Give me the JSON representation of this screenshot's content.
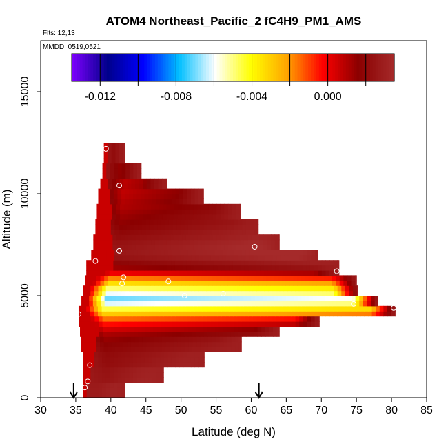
{
  "chart_data": {
    "type": "heatmap",
    "title": "ATOM4 Northeast_Pacific_2 fC4H9_PM1_AMS",
    "subtitle_flights": "Flts: 12,13",
    "subtitle_dates": "MMDD: 0519,0521",
    "xlabel": "Latitude (deg N)",
    "ylabel": "Altitude (m)",
    "xlim": [
      30,
      85
    ],
    "ylim": [
      0,
      17500
    ],
    "x_ticks": [
      30,
      35,
      40,
      45,
      50,
      55,
      60,
      65,
      70,
      75,
      80,
      85
    ],
    "y_ticks": [
      0,
      5000,
      10000,
      15000
    ],
    "colorbar": {
      "range": [
        -0.0135,
        0.0035
      ],
      "tick_values": [
        -0.012,
        -0.008,
        -0.004,
        0.0
      ],
      "tick_labels": [
        "-0.012",
        "-0.008",
        "-0.004",
        "0.000"
      ],
      "colors": [
        "#7f00ff",
        "#00008b",
        "#0000ff",
        "#00bfff",
        "#ffffff",
        "#ffff00",
        "#ffa500",
        "#ff0000",
        "#8b0000",
        "#a52a2a"
      ]
    },
    "sample_points": [
      {
        "lat": 39.3,
        "alt": 12200
      },
      {
        "lat": 41.2,
        "alt": 10400
      },
      {
        "lat": 41.2,
        "alt": 7200
      },
      {
        "lat": 37.8,
        "alt": 6700
      },
      {
        "lat": 41.8,
        "alt": 5900
      },
      {
        "lat": 41.6,
        "alt": 5600
      },
      {
        "lat": 48.2,
        "alt": 5700
      },
      {
        "lat": 50.5,
        "alt": 5000
      },
      {
        "lat": 56.0,
        "alt": 5100
      },
      {
        "lat": 60.5,
        "alt": 7400
      },
      {
        "lat": 72.2,
        "alt": 6200
      },
      {
        "lat": 74.6,
        "alt": 4600
      },
      {
        "lat": 78.0,
        "alt": 5200
      },
      {
        "lat": 80.3,
        "alt": 4400
      },
      {
        "lat": 35.4,
        "alt": 4100
      },
      {
        "lat": 37.0,
        "alt": 1600
      },
      {
        "lat": 36.7,
        "alt": 800
      },
      {
        "lat": 36.3,
        "alt": 500
      }
    ],
    "flight_markers_lat": [
      34.7,
      61.1
    ],
    "profiles": [
      {
        "alt": 400,
        "lat_range": [
          36.0,
          42.0
        ],
        "value": 0.0022
      },
      {
        "alt": 1200,
        "lat_range": [
          36.0,
          47.5
        ],
        "value": 0.002
      },
      {
        "alt": 2000,
        "lat_range": [
          36.0,
          53.3
        ],
        "value": 0.0018
      },
      {
        "alt": 2600,
        "lat_range": [
          35.7,
          58.6
        ],
        "value": 0.0015
      },
      {
        "alt": 3200,
        "lat_range": [
          35.6,
          64.0
        ],
        "value": 0.0008
      },
      {
        "alt": 3700,
        "lat_range": [
          35.5,
          69.7
        ],
        "value": -0.0008
      },
      {
        "alt": 4200,
        "lat_range": [
          35.4,
          80.5
        ],
        "value": -0.0035
      },
      {
        "alt": 4800,
        "lat_range": [
          35.8,
          78.0
        ],
        "value": -0.0075
      },
      {
        "alt": 5300,
        "lat_range": [
          36.0,
          75.2
        ],
        "value": -0.0055
      },
      {
        "alt": 5800,
        "lat_range": [
          36.3,
          75.0
        ],
        "value": -0.0025
      },
      {
        "alt": 6300,
        "lat_range": [
          36.5,
          72.5
        ],
        "value": 0.001
      },
      {
        "alt": 7000,
        "lat_range": [
          37.2,
          69.5
        ],
        "value": 0.0025
      },
      {
        "alt": 7600,
        "lat_range": [
          37.5,
          64.0
        ],
        "value": 0.0022
      },
      {
        "alt": 8300,
        "lat_range": [
          37.8,
          61.0
        ],
        "value": 0.0015
      },
      {
        "alt": 9000,
        "lat_range": [
          38.0,
          58.5
        ],
        "value": 0.001
      },
      {
        "alt": 9800,
        "lat_range": [
          38.2,
          53.2
        ],
        "value": 0.0005
      },
      {
        "alt": 10500,
        "lat_range": [
          38.5,
          48.0
        ],
        "value": 0.0003
      },
      {
        "alt": 11200,
        "lat_range": [
          38.8,
          44.3
        ],
        "value": 0.0002
      },
      {
        "alt": 12000,
        "lat_range": [
          39.0,
          42.0
        ],
        "value": 0.0001
      }
    ]
  }
}
